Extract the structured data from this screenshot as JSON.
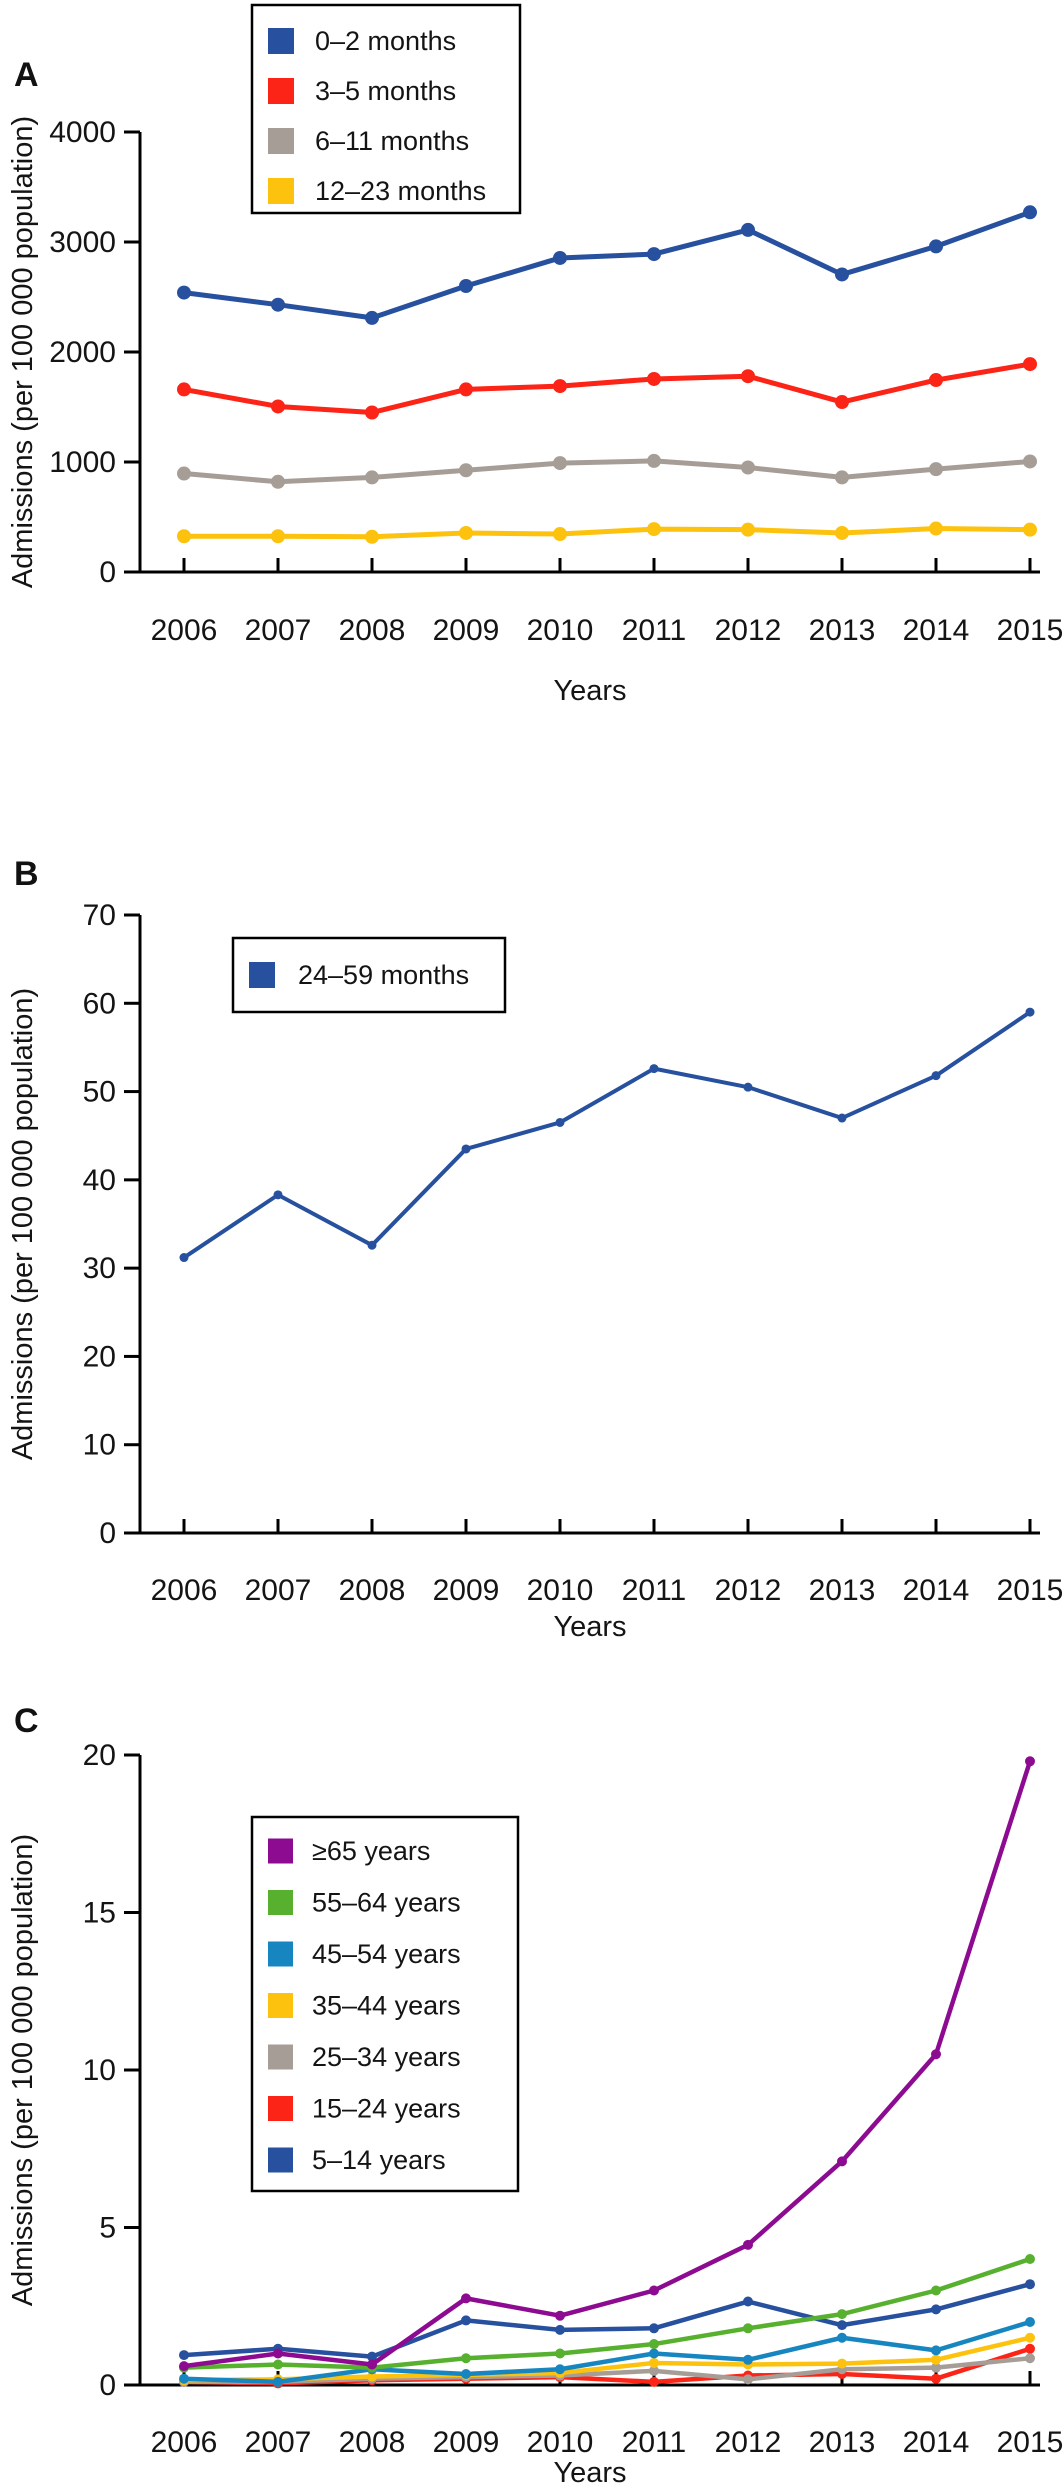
{
  "figure": {
    "xlabel": "Years",
    "ylabel": "Admissions (per 100 000 population)",
    "years": [
      "2006",
      "2007",
      "2008",
      "2009",
      "2010",
      "2011",
      "2012",
      "2013",
      "2014",
      "2015"
    ]
  },
  "chart_data": [
    {
      "panel": "A",
      "type": "line",
      "x": [
        2006,
        2007,
        2008,
        2009,
        2010,
        2011,
        2012,
        2013,
        2014,
        2015
      ],
      "xlabel": "Years",
      "ylabel": "Admissions (per 100 000 population)",
      "ylim": [
        0,
        4000
      ],
      "yticks": [
        0,
        1000,
        2000,
        3000,
        4000
      ],
      "legend_position": "top-center",
      "grid": false,
      "series": [
        {
          "name": "0–2 months",
          "color": "#27519e",
          "values": [
            2540,
            2430,
            2310,
            2600,
            2855,
            2890,
            3110,
            2705,
            2960,
            3270
          ]
        },
        {
          "name": "3–5 months",
          "color": "#fb2416",
          "values": [
            1660,
            1505,
            1450,
            1660,
            1690,
            1755,
            1780,
            1545,
            1745,
            1890
          ]
        },
        {
          "name": "6–11 months",
          "color": "#a69d97",
          "values": [
            895,
            820,
            860,
            925,
            990,
            1010,
            950,
            860,
            935,
            1005
          ]
        },
        {
          "name": "12–23 months",
          "color": "#fdc20e",
          "values": [
            325,
            325,
            320,
            355,
            345,
            390,
            385,
            355,
            395,
            385
          ]
        }
      ]
    },
    {
      "panel": "B",
      "type": "line",
      "x": [
        2006,
        2007,
        2008,
        2009,
        2010,
        2011,
        2012,
        2013,
        2014,
        2015
      ],
      "xlabel": "Years",
      "ylabel": "Admissions (per 100 000 population)",
      "ylim": [
        0,
        70
      ],
      "yticks": [
        0,
        10,
        20,
        30,
        40,
        50,
        60,
        70
      ],
      "legend_position": "upper-left",
      "grid": false,
      "series": [
        {
          "name": "24–59 months",
          "color": "#27519e",
          "values": [
            31.2,
            38.3,
            32.6,
            43.5,
            46.5,
            52.6,
            50.5,
            47.0,
            51.8,
            59.0
          ]
        }
      ]
    },
    {
      "panel": "C",
      "type": "line",
      "x": [
        2006,
        2007,
        2008,
        2009,
        2010,
        2011,
        2012,
        2013,
        2014,
        2015
      ],
      "xlabel": "Years",
      "ylabel": "Admissions (per 100 000 population)",
      "ylim": [
        0,
        20
      ],
      "yticks": [
        0,
        5,
        10,
        15,
        20
      ],
      "legend_position": "upper-left",
      "grid": false,
      "series": [
        {
          "name": "≥65 years",
          "color": "#8d0b90",
          "values": [
            0.6,
            1.0,
            0.65,
            2.75,
            2.2,
            3.0,
            4.45,
            7.1,
            10.5,
            19.8
          ]
        },
        {
          "name": "55–64 years",
          "color": "#57b02e",
          "values": [
            0.55,
            0.65,
            0.55,
            0.85,
            1.0,
            1.3,
            1.8,
            2.25,
            3.0,
            4.0
          ]
        },
        {
          "name": "45–54 years",
          "color": "#1786c0",
          "values": [
            0.2,
            0.1,
            0.5,
            0.35,
            0.5,
            1.0,
            0.8,
            1.5,
            1.1,
            2.0
          ]
        },
        {
          "name": "35–44 years",
          "color": "#fdc20e",
          "values": [
            0.15,
            0.18,
            0.27,
            0.32,
            0.38,
            0.7,
            0.65,
            0.68,
            0.8,
            1.5
          ]
        },
        {
          "name": "25–34 years",
          "color": "#a69d97",
          "values": [
            0.1,
            0.1,
            0.2,
            0.25,
            0.3,
            0.45,
            0.18,
            0.5,
            0.55,
            0.85
          ]
        },
        {
          "name": "15–24 years",
          "color": "#fb2416",
          "values": [
            0.1,
            0.05,
            0.15,
            0.2,
            0.25,
            0.1,
            0.3,
            0.35,
            0.2,
            1.15
          ]
        },
        {
          "name": "5–14 years",
          "color": "#27519e",
          "values": [
            0.95,
            1.15,
            0.9,
            2.05,
            1.75,
            1.8,
            2.65,
            1.9,
            2.4,
            3.2
          ]
        }
      ]
    }
  ]
}
